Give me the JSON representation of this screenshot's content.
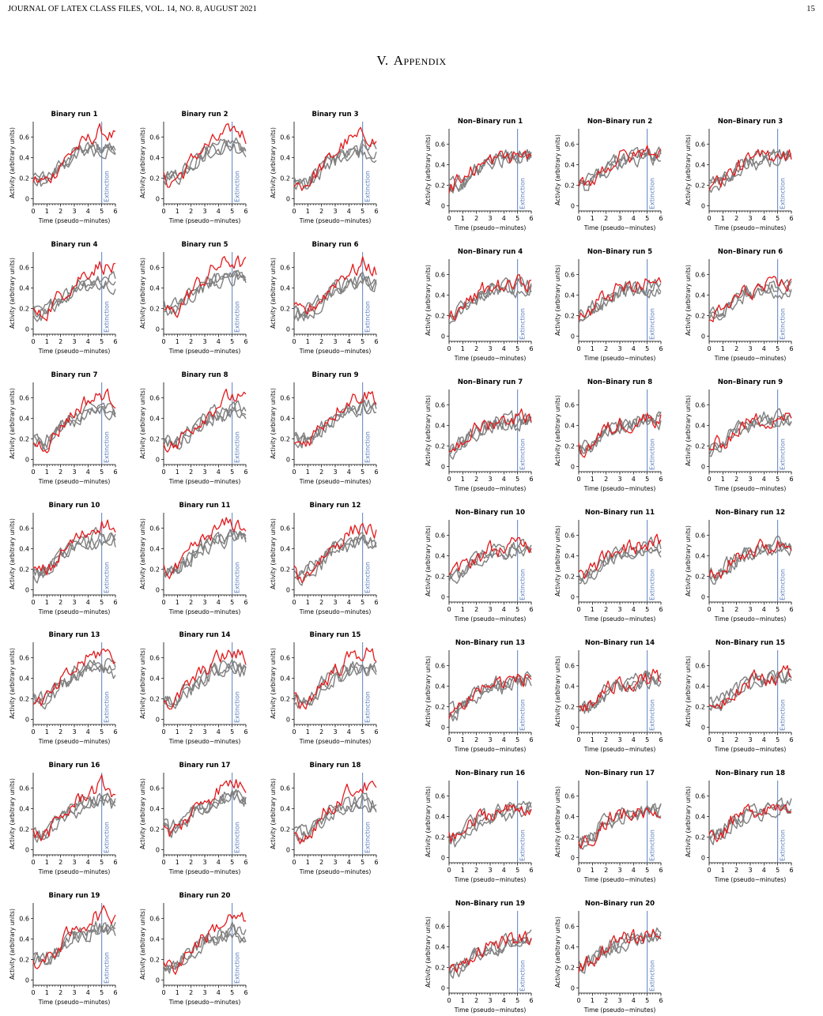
{
  "header": {
    "title": "JOURNAL OF LATEX CLASS FILES, VOL. 14, NO. 8, AUGUST 2021",
    "page": "15"
  },
  "section": {
    "numeral": "V.",
    "label": "Appendix"
  },
  "chart_data": [
    {
      "type": "line",
      "name": "Binary runs",
      "panel_titles": [
        "Binary run 1",
        "Binary run 2",
        "Binary run 3",
        "Binary run 4",
        "Binary run 5",
        "Binary run 6",
        "Binary run 7",
        "Binary run 8",
        "Binary run 9",
        "Binary run 10",
        "Binary run 11",
        "Binary run 12",
        "Binary run 13",
        "Binary run 14",
        "Binary run 15",
        "Binary run 16",
        "Binary run 17",
        "Binary run 18",
        "Binary run 19",
        "Binary run 20"
      ],
      "xlabel": "Time (pseudo−minutes)",
      "ylabel": "Activity (arbitrary units)",
      "xticks": [
        0,
        1,
        2,
        3,
        4,
        5,
        6
      ],
      "yticks": [
        0,
        0.2,
        0.4,
        0.6
      ],
      "ytick_labels": [
        "0",
        "0.2",
        "0.4",
        "0.6"
      ],
      "xlim": [
        0,
        6
      ],
      "ylim": [
        -0.05,
        0.75
      ],
      "annotation": "Extinction",
      "annotation_x": 5,
      "colors": {
        "target": "#e41a1c",
        "others": "#808080",
        "extinction": "#5b7fbf"
      },
      "series_profile": {
        "x": [
          0,
          0.5,
          1,
          1.5,
          2,
          2.5,
          3,
          3.5,
          4,
          4.5,
          5,
          5.5,
          6
        ],
        "target": [
          0.18,
          0.14,
          0.17,
          0.25,
          0.33,
          0.4,
          0.46,
          0.52,
          0.57,
          0.6,
          0.63,
          0.62,
          0.58
        ],
        "others": [
          0.18,
          0.16,
          0.18,
          0.24,
          0.3,
          0.36,
          0.41,
          0.44,
          0.46,
          0.48,
          0.5,
          0.48,
          0.46
        ]
      }
    },
    {
      "type": "line",
      "name": "Non-Binary runs",
      "panel_titles": [
        "Non–Binary run 1",
        "Non–Binary run 2",
        "Non–Binary run 3",
        "Non–Binary run 4",
        "Non–Binary run 5",
        "Non–Binary run 6",
        "Non–Binary run 7",
        "Non–Binary run 8",
        "Non–Binary run 9",
        "Non–Binary run 10",
        "Non–Binary run 11",
        "Non–Binary run 12",
        "Non–Binary run 13",
        "Non–Binary run 14",
        "Non–Binary run 15",
        "Non–Binary run 16",
        "Non–Binary run 17",
        "Non–Binary run 18",
        "Non–Binary run 19",
        "Non–Binary run 20"
      ],
      "xlabel": "Time (pseudo−minutes)",
      "ylabel": "Activity (arbitrary units)",
      "xticks": [
        0,
        1,
        2,
        3,
        4,
        5,
        6
      ],
      "yticks": [
        0,
        0.2,
        0.4,
        0.6
      ],
      "ytick_labels": [
        "0",
        "0.2",
        "0.4",
        "0.6"
      ],
      "xlim": [
        0,
        6
      ],
      "ylim": [
        -0.05,
        0.75
      ],
      "annotation": "Extinction",
      "annotation_x": 5,
      "colors": {
        "target": "#e41a1c",
        "others": "#808080",
        "extinction": "#5b7fbf"
      },
      "series_profile": {
        "x": [
          0,
          0.5,
          1,
          1.5,
          2,
          2.5,
          3,
          3.5,
          4,
          4.5,
          5,
          5.5,
          6
        ],
        "target": [
          0.18,
          0.2,
          0.24,
          0.3,
          0.36,
          0.4,
          0.43,
          0.45,
          0.46,
          0.47,
          0.49,
          0.5,
          0.49
        ],
        "others": [
          0.18,
          0.19,
          0.23,
          0.29,
          0.34,
          0.38,
          0.41,
          0.43,
          0.44,
          0.45,
          0.46,
          0.47,
          0.47
        ]
      }
    }
  ]
}
